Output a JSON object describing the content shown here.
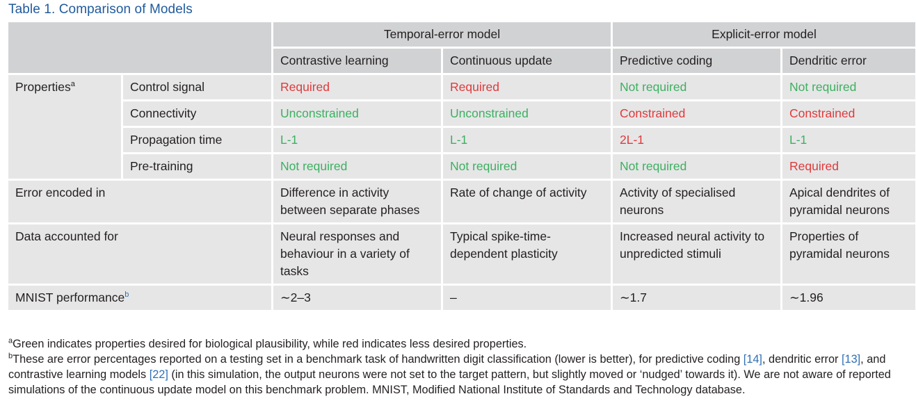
{
  "title": "Table 1. Comparison of Models",
  "header": {
    "group1": "Temporal-error model",
    "group2": "Explicit-error model",
    "columns": [
      "Contrastive learning",
      "Continuous update",
      "Predictive coding",
      "Dendritic error"
    ]
  },
  "properties": {
    "label": "Properties",
    "sup": "a",
    "rows": [
      {
        "name": "Control signal",
        "values": [
          "Required",
          "Required",
          "Not required",
          "Not required"
        ]
      },
      {
        "name": "Connectivity",
        "values": [
          "Unconstrained",
          "Unconstrained",
          "Constrained",
          "Constrained"
        ]
      },
      {
        "name": "Propagation time",
        "values": [
          "L-1",
          "L-1",
          "2L-1",
          "L-1"
        ]
      },
      {
        "name": "Pre-training",
        "values": [
          "Not required",
          "Not required",
          "Not required",
          "Required"
        ]
      }
    ]
  },
  "error_encoded": {
    "label": "Error encoded in",
    "values": [
      "Difference in activity between separate phases",
      "Rate of change of activity",
      "Activity of specialised neurons",
      "Apical dendrites of pyramidal neurons"
    ]
  },
  "data_accounted": {
    "label": "Data accounted for",
    "values": [
      "Neural responses and behaviour in a variety of tasks",
      "Typical spike-time-dependent plasticity",
      "Increased neural activity to unpredicted stimuli",
      "Properties of pyramidal neurons"
    ]
  },
  "mnist": {
    "label": "MNIST performance",
    "sup": "b",
    "values": [
      "∼2–3",
      "–",
      "∼1.7",
      "∼1.96"
    ]
  },
  "colors": {
    "desired": "#3db060",
    "undesired": "#e03a3a",
    "title": "#1f5a9e"
  },
  "footnotes": {
    "a_mark": "a",
    "a_text": "Green indicates properties desired for biological plausibility, while red indicates less desired properties.",
    "b_mark": "b",
    "b_text1": "These are error percentages reported on a testing set in a benchmark task of handwritten digit classification (lower is better), for predictive coding ",
    "ref1": "[14]",
    "b_text2": ", dendritic error ",
    "ref2": "[13]",
    "b_text3": ", and contrastive learning models ",
    "ref3": "[22]",
    "b_text4": " (in this simulation, the output neurons were not set to the target pattern, but slightly moved or ‘nudged’ towards it). We are not aware of reported simulations of the continuous update model on this benchmark problem. MNIST, Modified National Institute of Standards and Technology database."
  }
}
